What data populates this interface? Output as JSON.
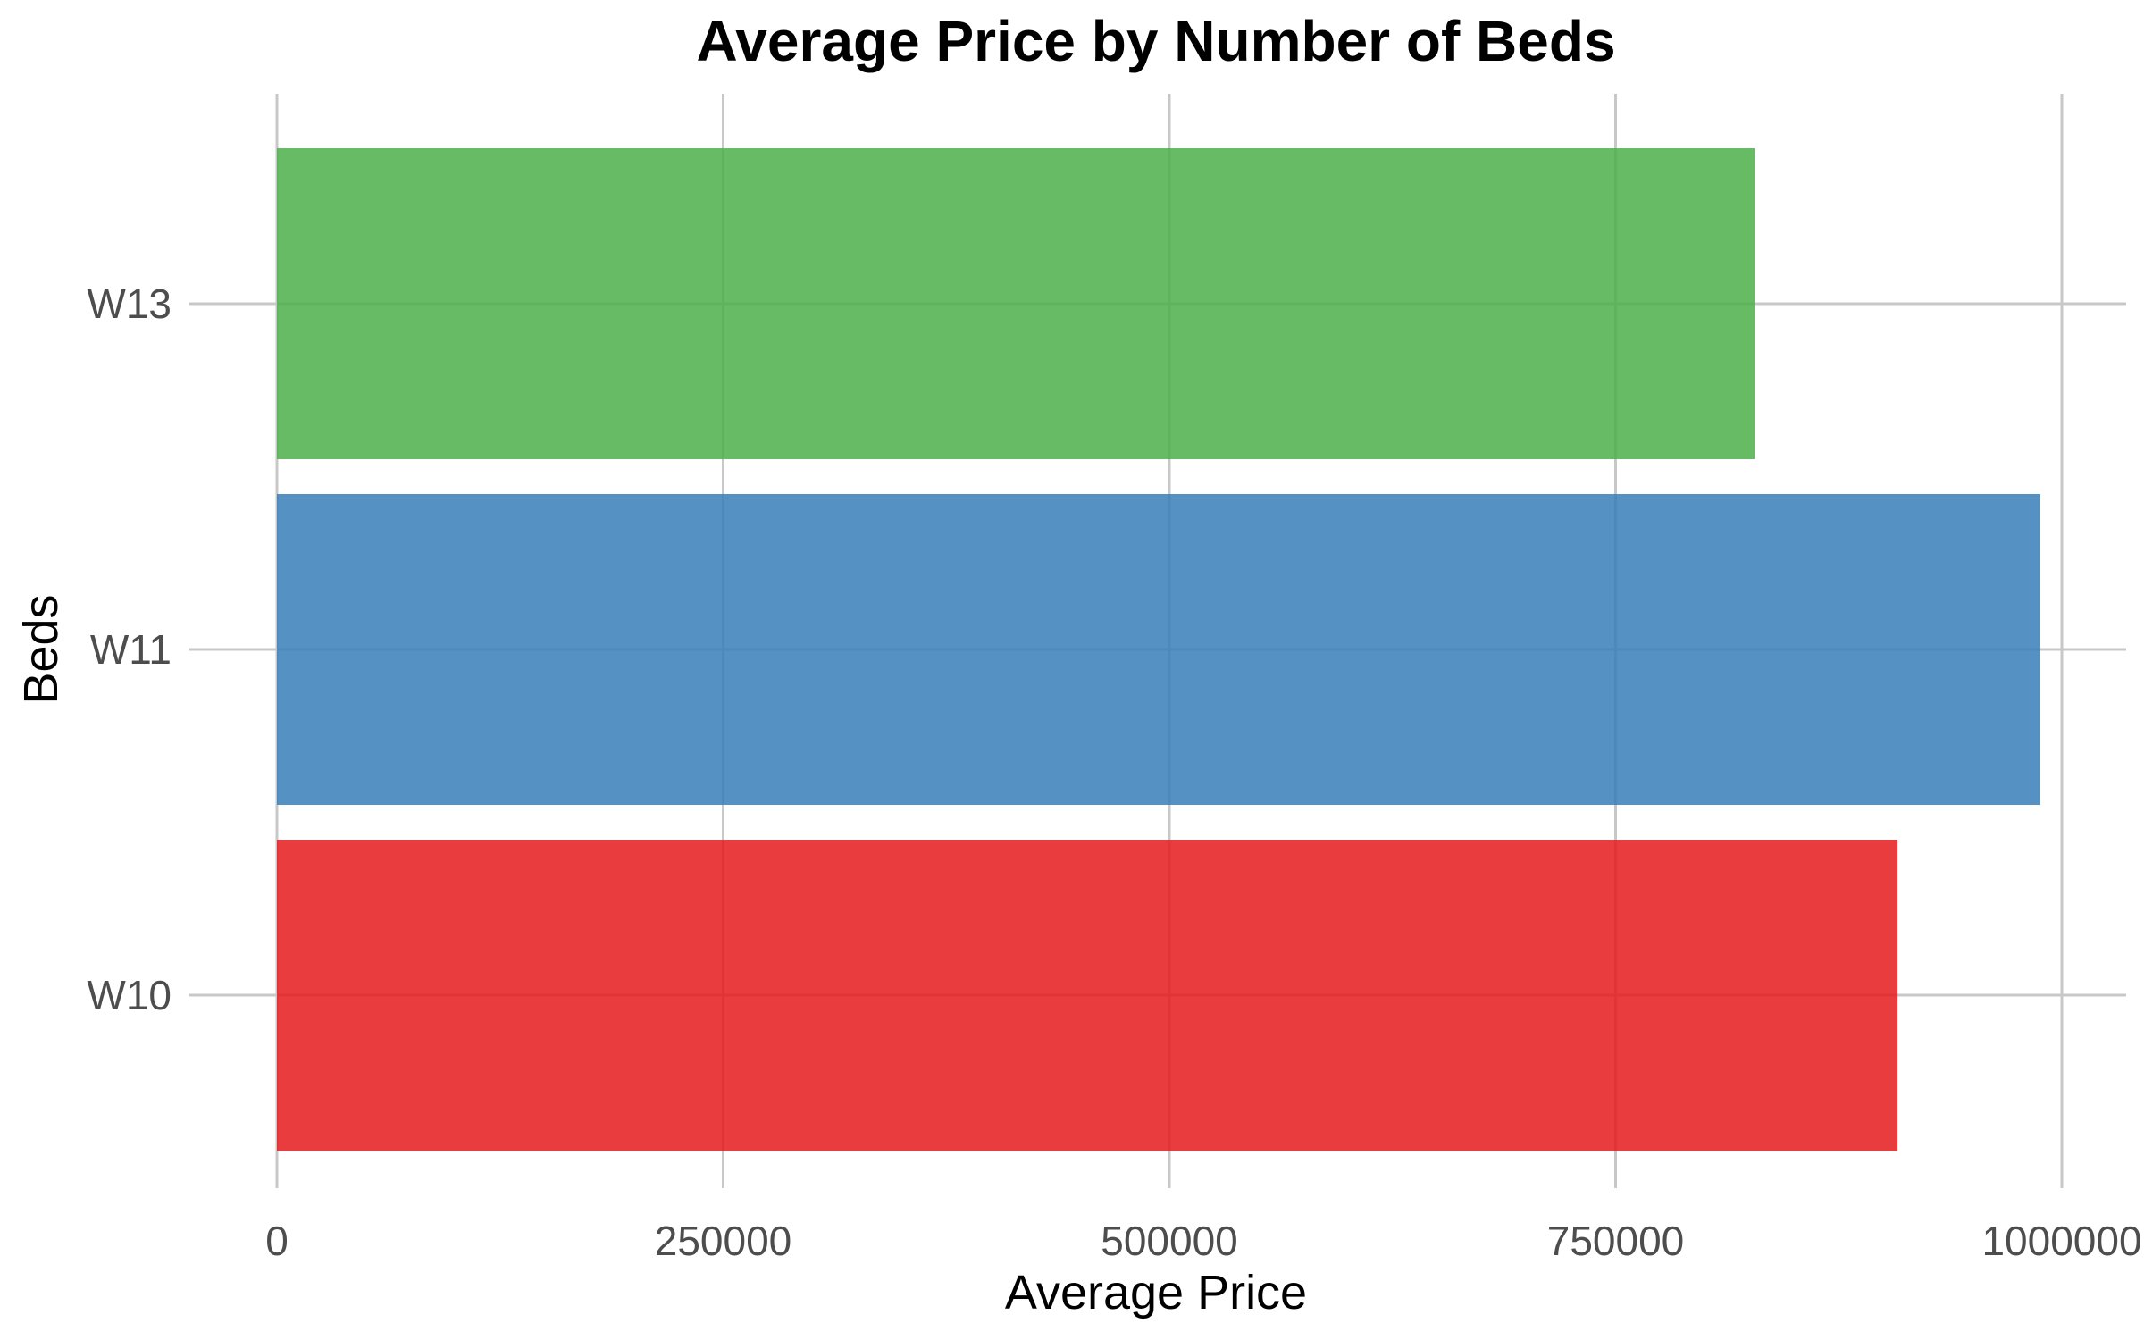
{
  "chart_data": {
    "type": "bar",
    "orientation": "horizontal",
    "title": "Average Price by Number of Beds",
    "xlabel": "Average Price",
    "ylabel": "Beds",
    "categories": [
      "W10",
      "W11",
      "W13"
    ],
    "values": [
      908000,
      988000,
      828000
    ],
    "colors": [
      "#e41a1c",
      "#377eb8",
      "#4daf4a"
    ],
    "xlim": [
      0,
      1000000
    ],
    "xticks": [
      "0",
      "250000",
      "500000",
      "750000",
      "1000000"
    ],
    "grid": true,
    "legend": "none"
  }
}
